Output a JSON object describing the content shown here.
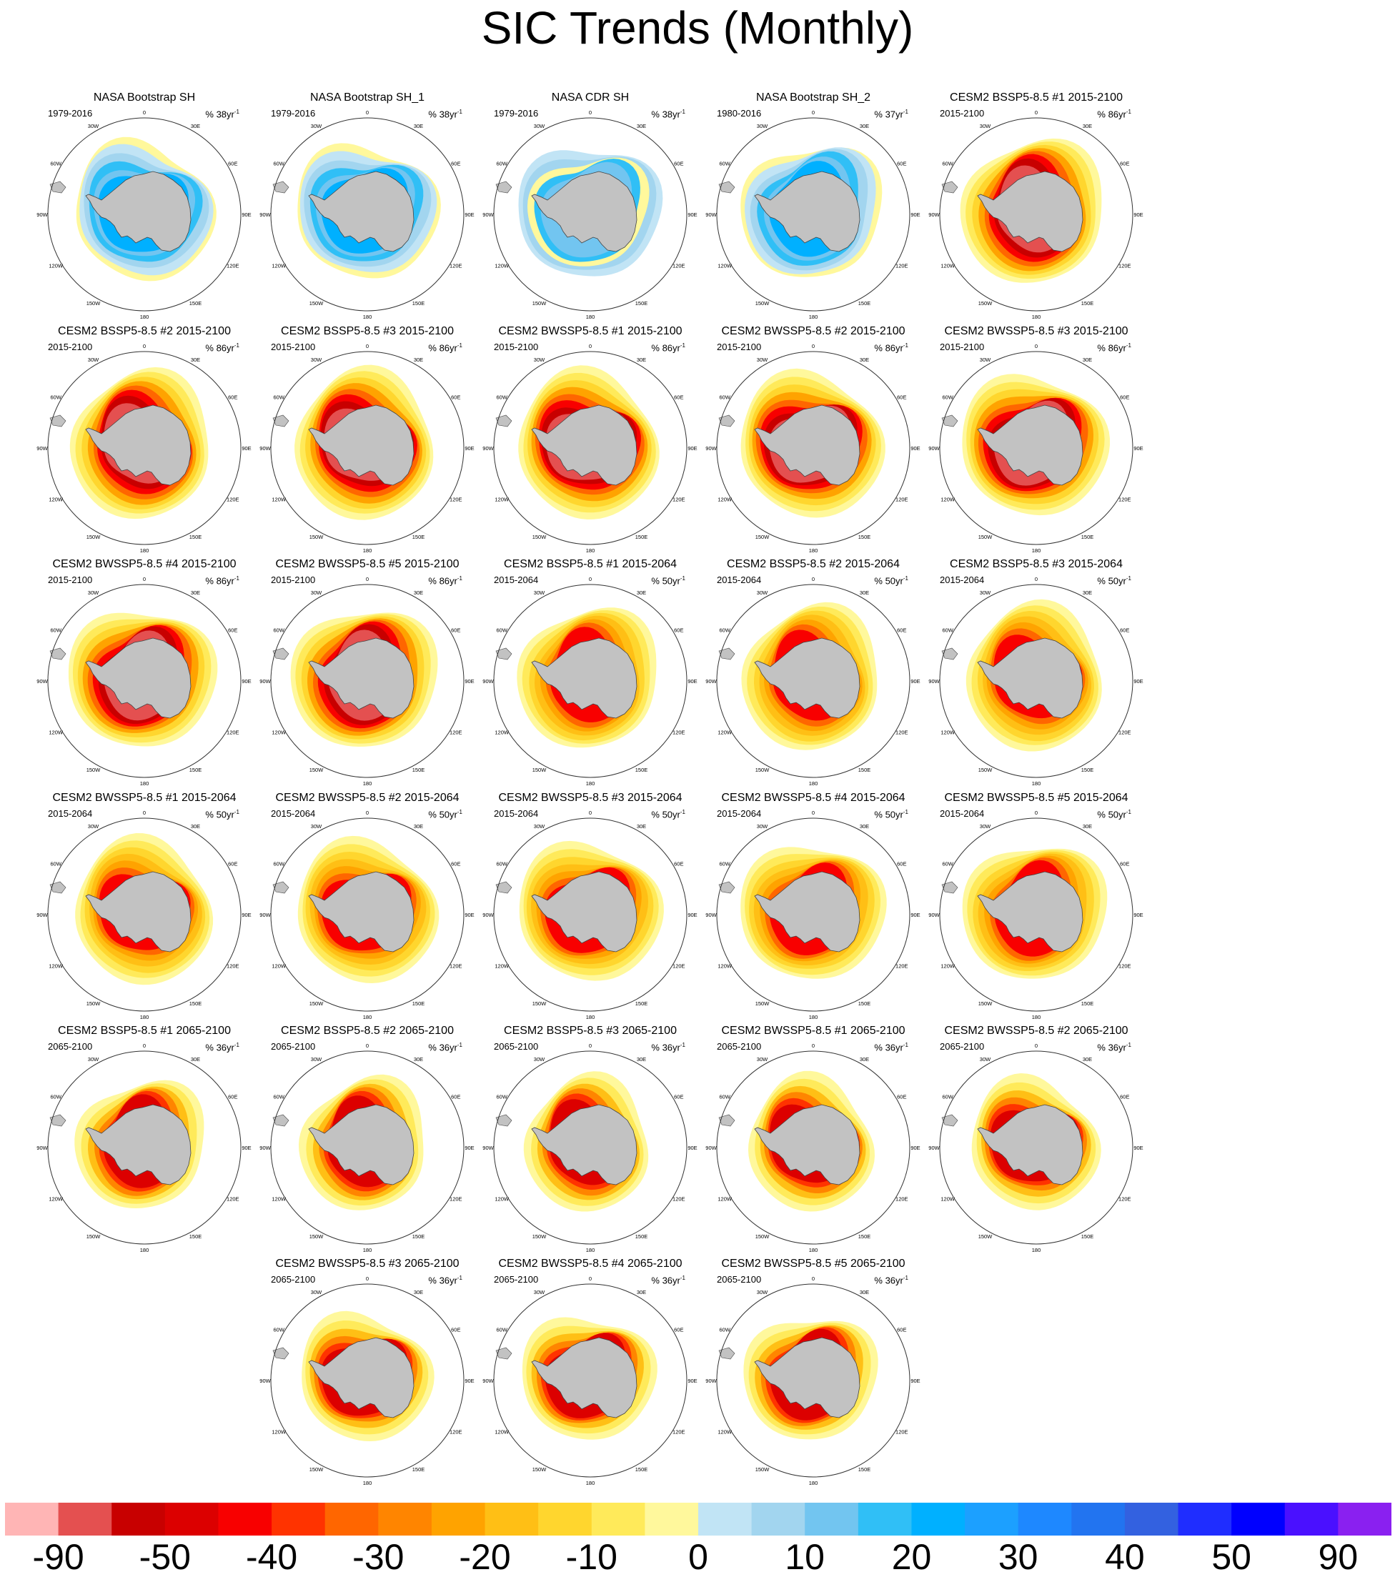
{
  "title": "SIC Trends (Monthly)",
  "units_prefix": "% ",
  "units_suffix": "yr",
  "units_exponent": "-1",
  "lon_labels": [
    "0",
    "30E",
    "60E",
    "90E",
    "120E",
    "150E",
    "180",
    "150W",
    "120W",
    "90W",
    "60W",
    "30W"
  ],
  "colors": {
    "land": "#c2c2c2",
    "circle": "#333333"
  },
  "chart_data": {
    "type": "heatmap",
    "description": "Polar stereographic maps of Southern Hemisphere sea ice concentration trend",
    "colorbar": {
      "labels": [
        "-90",
        "-50",
        "-40",
        "-30",
        "-20",
        "-10",
        "0",
        "10",
        "20",
        "30",
        "40",
        "50",
        "90"
      ],
      "colors": [
        "#ffb5b5",
        "#e45050",
        "#c80000",
        "#dc0000",
        "#f80000",
        "#ff3300",
        "#ff6600",
        "#ff8500",
        "#ffa300",
        "#ffbf15",
        "#ffd62e",
        "#ffea5a",
        "#fff89c",
        "#c1e4f5",
        "#a2d5ef",
        "#72c5f0",
        "#30bff6",
        "#00b0ff",
        "#1ca0ff",
        "#1e88ff",
        "#2274f0",
        "#3361e0",
        "#1f2dff",
        "#0000ff",
        "#4a10ff",
        "#8a20f0"
      ]
    },
    "panels": [
      {
        "title": "NASA Bootstrap SH",
        "period": "1979-2016",
        "rate": "38",
        "pattern": "obs1"
      },
      {
        "title": "NASA Bootstrap SH_1",
        "period": "1979-2016",
        "rate": "38",
        "pattern": "obs1"
      },
      {
        "title": "NASA CDR SH",
        "period": "1979-2016",
        "rate": "38",
        "pattern": "obs2"
      },
      {
        "title": "NASA Bootstrap SH_2",
        "period": "1980-2016",
        "rate": "37",
        "pattern": "obs1"
      },
      {
        "title": "CESM2 BSSP5-8.5 #1 2015-2100",
        "period": "2015-2100",
        "rate": "86",
        "pattern": "strong"
      },
      {
        "title": "CESM2 BSSP5-8.5 #2 2015-2100",
        "period": "2015-2100",
        "rate": "86",
        "pattern": "strong"
      },
      {
        "title": "CESM2 BSSP5-8.5 #3 2015-2100",
        "period": "2015-2100",
        "rate": "86",
        "pattern": "strong"
      },
      {
        "title": "CESM2 BWSSP5-8.5 #1 2015-2100",
        "period": "2015-2100",
        "rate": "86",
        "pattern": "strong"
      },
      {
        "title": "CESM2 BWSSP5-8.5 #2 2015-2100",
        "period": "2015-2100",
        "rate": "86",
        "pattern": "strong"
      },
      {
        "title": "CESM2 BWSSP5-8.5 #3 2015-2100",
        "period": "2015-2100",
        "rate": "86",
        "pattern": "strong"
      },
      {
        "title": "CESM2 BWSSP5-8.5 #4 2015-2100",
        "period": "2015-2100",
        "rate": "86",
        "pattern": "strong"
      },
      {
        "title": "CESM2 BWSSP5-8.5 #5 2015-2100",
        "period": "2015-2100",
        "rate": "86",
        "pattern": "strong"
      },
      {
        "title": "CESM2 BSSP5-8.5 #1 2015-2064",
        "period": "2015-2064",
        "rate": "50",
        "pattern": "medium"
      },
      {
        "title": "CESM2 BSSP5-8.5 #2 2015-2064",
        "period": "2015-2064",
        "rate": "50",
        "pattern": "medium"
      },
      {
        "title": "CESM2 BSSP5-8.5 #3 2015-2064",
        "period": "2015-2064",
        "rate": "50",
        "pattern": "medium"
      },
      {
        "title": "CESM2 BWSSP5-8.5 #1 2015-2064",
        "period": "2015-2064",
        "rate": "50",
        "pattern": "medium"
      },
      {
        "title": "CESM2 BWSSP5-8.5 #2 2015-2064",
        "period": "2015-2064",
        "rate": "50",
        "pattern": "medium"
      },
      {
        "title": "CESM2 BWSSP5-8.5 #3 2015-2064",
        "period": "2015-2064",
        "rate": "50",
        "pattern": "medium"
      },
      {
        "title": "CESM2 BWSSP5-8.5 #4 2015-2064",
        "period": "2015-2064",
        "rate": "50",
        "pattern": "medium"
      },
      {
        "title": "CESM2 BWSSP5-8.5 #5 2015-2064",
        "period": "2015-2064",
        "rate": "50",
        "pattern": "medium"
      },
      {
        "title": "CESM2 BSSP5-8.5 #1 2065-2100",
        "period": "2065-2100",
        "rate": "36",
        "pattern": "late"
      },
      {
        "title": "CESM2 BSSP5-8.5 #2 2065-2100",
        "period": "2065-2100",
        "rate": "36",
        "pattern": "late"
      },
      {
        "title": "CESM2 BSSP5-8.5 #3 2065-2100",
        "period": "2065-2100",
        "rate": "36",
        "pattern": "late"
      },
      {
        "title": "CESM2 BWSSP5-8.5 #1 2065-2100",
        "period": "2065-2100",
        "rate": "36",
        "pattern": "late"
      },
      {
        "title": "CESM2 BWSSP5-8.5 #2 2065-2100",
        "period": "2065-2100",
        "rate": "36",
        "pattern": "late"
      },
      {
        "title": "CESM2 BWSSP5-8.5 #3 2065-2100",
        "period": "2065-2100",
        "rate": "36",
        "pattern": "late"
      },
      {
        "title": "CESM2 BWSSP5-8.5 #4 2065-2100",
        "period": "2065-2100",
        "rate": "36",
        "pattern": "late"
      },
      {
        "title": "CESM2 BWSSP5-8.5 #5 2065-2100",
        "period": "2065-2100",
        "rate": "36",
        "pattern": "late"
      }
    ]
  }
}
